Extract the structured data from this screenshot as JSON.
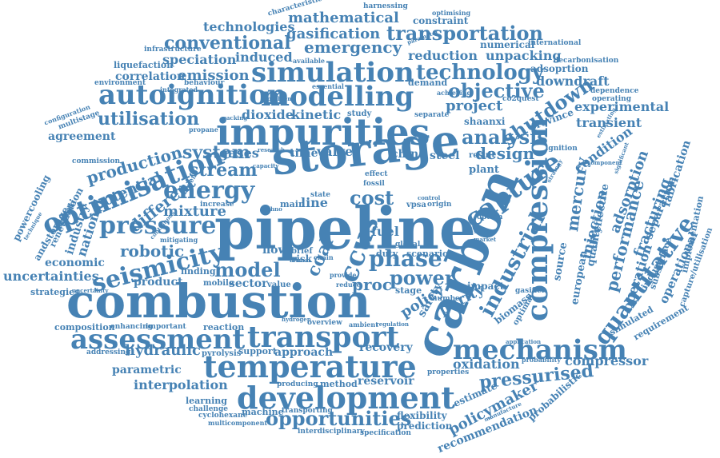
{
  "colors": {
    "word": "#4682b4",
    "background": "#ffffff"
  },
  "words": [
    {
      "text": "pipeline",
      "weight": 100
    },
    {
      "text": "storage",
      "weight": 95
    },
    {
      "text": "combustion",
      "weight": 92
    },
    {
      "text": "carbon",
      "weight": 92
    },
    {
      "text": "impurities",
      "weight": 88
    },
    {
      "text": "development",
      "weight": 72
    },
    {
      "text": "temperature",
      "weight": 70
    },
    {
      "text": "transport",
      "weight": 68
    },
    {
      "text": "assessment",
      "weight": 62
    },
    {
      "text": "compression",
      "weight": 62
    },
    {
      "text": "mechanism",
      "weight": 60
    },
    {
      "text": "simulation",
      "weight": 58
    },
    {
      "text": "modelling",
      "weight": 58
    },
    {
      "text": "autoignition",
      "weight": 58
    },
    {
      "text": "optimisation",
      "weight": 58
    },
    {
      "text": "seismicity",
      "weight": 56
    },
    {
      "text": "capture",
      "weight": 56
    },
    {
      "text": "pressure",
      "weight": 52
    },
    {
      "text": "energy",
      "weight": 52
    },
    {
      "text": "ccus",
      "weight": 52
    },
    {
      "text": "opportunities",
      "weight": 50
    },
    {
      "text": "quantitative",
      "weight": 50
    },
    {
      "text": "phase",
      "weight": 46
    },
    {
      "text": "technology",
      "weight": 46
    },
    {
      "text": "industrial",
      "weight": 46
    },
    {
      "text": "transportation",
      "weight": 44
    },
    {
      "text": "stream",
      "weight": 40
    },
    {
      "text": "model",
      "weight": 40
    },
    {
      "text": "system",
      "weight": 40
    },
    {
      "text": "cost",
      "weight": 40
    },
    {
      "text": "power",
      "weight": 40
    },
    {
      "text": "shutdown",
      "weight": 38
    },
    {
      "text": "objective",
      "weight": 38
    },
    {
      "text": "analysis",
      "weight": 38
    },
    {
      "text": "design",
      "weight": 36
    },
    {
      "text": "conventional",
      "weight": 36
    },
    {
      "text": "emergency",
      "weight": 36
    },
    {
      "text": "production",
      "weight": 36
    },
    {
      "text": "different",
      "weight": 36
    },
    {
      "text": "mixture",
      "weight": 32
    },
    {
      "text": "robotic",
      "weight": 32
    },
    {
      "text": "potential",
      "weight": 32
    },
    {
      "text": "utilisation",
      "weight": 32
    },
    {
      "text": "pressurised",
      "weight": 32
    },
    {
      "text": "mercury",
      "weight": 32
    },
    {
      "text": "performance",
      "weight": 32
    },
    {
      "text": "policymaker",
      "weight": 30
    },
    {
      "text": "coal",
      "weight": 30
    },
    {
      "text": "adsorption",
      "weight": 30
    },
    {
      "text": "fracturing",
      "weight": 28
    },
    {
      "text": "mathematical",
      "weight": 28
    },
    {
      "text": "gasification",
      "weight": 28
    },
    {
      "text": "technologies",
      "weight": 26
    },
    {
      "text": "emission",
      "weight": 26
    },
    {
      "text": "induced",
      "weight": 24
    },
    {
      "text": "speciation",
      "weight": 24
    },
    {
      "text": "reduction",
      "weight": 24
    },
    {
      "text": "unpacking",
      "weight": 24
    },
    {
      "text": "downdraft",
      "weight": 24
    },
    {
      "text": "project",
      "weight": 26
    },
    {
      "text": "experimental",
      "weight": 24
    },
    {
      "text": "transient",
      "weight": 22
    },
    {
      "text": "condition",
      "weight": 24
    },
    {
      "text": "injection",
      "weight": 26
    },
    {
      "text": "purity",
      "weight": 26
    },
    {
      "text": "policy",
      "weight": 26
    },
    {
      "text": "proc",
      "weight": 24
    },
    {
      "text": "hydraulic",
      "weight": 26
    },
    {
      "text": "reservoir",
      "weight": 22
    },
    {
      "text": "oxidation",
      "weight": 22
    },
    {
      "text": "interpolation",
      "weight": 22
    },
    {
      "text": "compressor",
      "weight": 20
    },
    {
      "text": "recommendation",
      "weight": 20
    },
    {
      "text": "economic",
      "weight": 20
    },
    {
      "text": "uncertainties",
      "weight": 22
    },
    {
      "text": "national",
      "weight": 24
    },
    {
      "text": "industry",
      "weight": 20
    },
    {
      "text": "product",
      "weight": 20
    },
    {
      "text": "sector",
      "weight": 20
    },
    {
      "text": "parametric",
      "weight": 20
    },
    {
      "text": "recovery",
      "weight": 20
    },
    {
      "text": "approach",
      "weight": 18
    },
    {
      "text": "flexibility",
      "weight": 18
    },
    {
      "text": "prediction",
      "weight": 18
    },
    {
      "text": "correlation",
      "weight": 18
    },
    {
      "text": "dioxide",
      "weight": 20
    },
    {
      "text": "kinetic",
      "weight": 20
    },
    {
      "text": "gases",
      "weight": 20
    },
    {
      "text": "time",
      "weight": 18
    },
    {
      "text": "valve",
      "weight": 20
    },
    {
      "text": "china",
      "weight": 18
    },
    {
      "text": "steel",
      "weight": 18
    },
    {
      "text": "plant",
      "weight": 16
    },
    {
      "text": "operation",
      "weight": 22
    },
    {
      "text": "operational",
      "weight": 20
    },
    {
      "text": "separation",
      "weight": 18
    },
    {
      "text": "fabrication",
      "weight": 18
    },
    {
      "text": "effective",
      "weight": 18
    },
    {
      "text": "quality",
      "weight": 18
    },
    {
      "text": "european",
      "weight": 18
    },
    {
      "text": "source",
      "weight": 18
    },
    {
      "text": "estimate",
      "weight": 14
    },
    {
      "text": "probabilistic",
      "weight": 14
    },
    {
      "text": "simulated",
      "weight": 14
    },
    {
      "text": "biomass",
      "weight": 14
    },
    {
      "text": "optimal",
      "weight": 12
    },
    {
      "text": "shaanxi",
      "weight": 14
    },
    {
      "text": "province",
      "weight": 14
    },
    {
      "text": "agreement",
      "weight": 16
    },
    {
      "text": "requirement",
      "weight": 14
    },
    {
      "text": "implementation",
      "weight": 14
    },
    {
      "text": "subsurface",
      "weight": 14
    },
    {
      "text": "industrie",
      "weight": 14
    },
    {
      "text": "capture/utilisation",
      "weight": 12
    },
    {
      "text": "powercooling",
      "weight": 14
    },
    {
      "text": "andstorage",
      "weight": 14
    },
    {
      "text": "renewable",
      "weight": 14
    },
    {
      "text": "equation",
      "weight": 14
    },
    {
      "text": "composition",
      "weight": 12
    },
    {
      "text": "strategies",
      "weight": 12
    },
    {
      "text": "pyrolysis",
      "weight": 12
    },
    {
      "text": "reaction",
      "weight": 12
    },
    {
      "text": "enhancing",
      "weight": 10
    },
    {
      "text": "important",
      "weight": 10
    },
    {
      "text": "support",
      "weight": 12
    },
    {
      "text": "method",
      "weight": 12
    },
    {
      "text": "machine",
      "weight": 12
    },
    {
      "text": "learning",
      "weight": 12
    },
    {
      "text": "challenge",
      "weight": 10
    },
    {
      "text": "cyclohexane",
      "weight": 10
    },
    {
      "text": "multicomponent",
      "weight": 10
    },
    {
      "text": "transporting",
      "weight": 10
    },
    {
      "text": "interdisciplinary",
      "weight": 10
    },
    {
      "text": "specification",
      "weight": 10
    },
    {
      "text": "producing",
      "weight": 10
    },
    {
      "text": "addressing",
      "weight": 10
    },
    {
      "text": "liquefaction",
      "weight": 10
    },
    {
      "text": "infrastructure",
      "weight": 10
    },
    {
      "text": "environment",
      "weight": 10
    },
    {
      "text": "behaviour",
      "weight": 10
    },
    {
      "text": "available",
      "weight": 10
    },
    {
      "text": "essential",
      "weight": 10
    },
    {
      "text": "demand",
      "weight": 12
    },
    {
      "text": "achieving",
      "weight": 10
    },
    {
      "text": "numerical",
      "weight": 12
    },
    {
      "text": "adsoprtion",
      "weight": 12
    },
    {
      "text": "international",
      "weight": 10
    },
    {
      "text": "decarbonisation",
      "weight": 10
    },
    {
      "text": "dependence",
      "weight": 10
    },
    {
      "text": "operating",
      "weight": 10
    },
    {
      "text": "characteristic",
      "weight": 10
    },
    {
      "text": "constraint",
      "weight": 12
    },
    {
      "text": "harnessing",
      "weight": 10
    },
    {
      "text": "optimising",
      "weight": 10
    },
    {
      "text": "co2quest",
      "weight": 10
    },
    {
      "text": "multistage",
      "weight": 10
    },
    {
      "text": "configuration",
      "weight": 10
    },
    {
      "text": "commission",
      "weight": 10
    },
    {
      "text": "propane",
      "weight": 10
    },
    {
      "text": "integrated",
      "weight": 10
    },
    {
      "text": "finding",
      "weight": 12
    },
    {
      "text": "mobile",
      "weight": 12
    },
    {
      "text": "value",
      "weight": 12
    },
    {
      "text": "flow",
      "weight": 14
    },
    {
      "text": "increase",
      "weight": 10
    },
    {
      "text": "benefit",
      "weight": 10
    },
    {
      "text": "gasifier",
      "weight": 10
    },
    {
      "text": "impact",
      "weight": 12
    },
    {
      "text": "stage",
      "weight": 12
    },
    {
      "text": "duty",
      "weight": 12
    },
    {
      "text": "scenario",
      "weight": 12
    },
    {
      "text": "global",
      "weight": 10
    },
    {
      "text": "result",
      "weight": 12
    },
    {
      "text": "safety",
      "weight": 20
    },
    {
      "text": "fuel",
      "weight": 20
    },
    {
      "text": "line",
      "weight": 20
    },
    {
      "text": "main",
      "weight": 12
    },
    {
      "text": "risk",
      "weight": 14
    },
    {
      "text": "ignition",
      "weight": 10
    },
    {
      "text": "number",
      "weight": 10
    },
    {
      "text": "separate",
      "weight": 10
    },
    {
      "text": "effect",
      "weight": 10
    },
    {
      "text": "fossil",
      "weight": 10
    },
    {
      "text": "overview",
      "weight": 10
    },
    {
      "text": "brief",
      "weight": 12
    },
    {
      "text": "chain",
      "weight": 10
    },
    {
      "text": "ambient",
      "weight": 10
    },
    {
      "text": "regulation",
      "weight": 8
    },
    {
      "text": "properties",
      "weight": 10
    },
    {
      "text": "probability",
      "weight": 10
    },
    {
      "text": "state",
      "weight": 10
    },
    {
      "text": "study",
      "weight": 10
    },
    {
      "text": "option",
      "weight": 10
    },
    {
      "text": "mitigating",
      "weight": 8
    },
    {
      "text": "vpsa",
      "weight": 10
    },
    {
      "text": "origin",
      "weight": 10
    },
    {
      "text": "hydrogen",
      "weight": 8
    },
    {
      "text": "provide",
      "weight": 8
    },
    {
      "text": "reduce",
      "weight": 8
    },
    {
      "text": "continuous",
      "weight": 8
    },
    {
      "text": "packing",
      "weight": 8
    },
    {
      "text": "technique",
      "weight": 8
    },
    {
      "text": "uncertainty",
      "weight": 8
    },
    {
      "text": "parameter",
      "weight": 8
    },
    {
      "text": "application",
      "weight": 8
    },
    {
      "text": "manufacture",
      "weight": 8
    },
    {
      "text": "component",
      "weight": 8
    },
    {
      "text": "estimating",
      "weight": 8
    },
    {
      "text": "significant",
      "weight": 8
    },
    {
      "text": "strategy",
      "weight": 8
    },
    {
      "text": "formal",
      "weight": 8
    },
    {
      "text": "control",
      "weight": 8
    },
    {
      "text": "solvent",
      "weight": 8
    },
    {
      "text": "market",
      "weight": 8
    },
    {
      "text": "research",
      "weight": 8
    },
    {
      "text": "capacity",
      "weight": 8
    },
    {
      "text": "problem",
      "weight": 8
    },
    {
      "text": "techno",
      "weight": 8
    }
  ]
}
